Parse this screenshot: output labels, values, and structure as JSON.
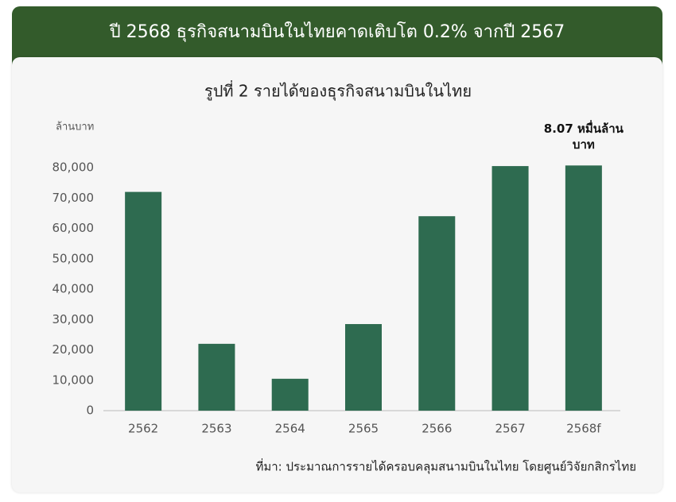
{
  "chart_data": {
    "type": "bar",
    "subtitle": "ปี 2568 ธุรกิจสนามบินในไทยคาดเติบโต 0.2% จากปี 2567",
    "title": "รูปที่ 2 รายได้ของธุรกิจสนามบินในไทย",
    "y_label": "ล้านบาท",
    "source": "ที่มา: ประมาณการรายได้ครอบคลุมสนามบินในไทย โดยศูนย์วิจัยกสิกรไทย",
    "categories": [
      "2562",
      "2563",
      "2564",
      "2565",
      "2566",
      "2567",
      "2568f"
    ],
    "values": [
      72000,
      22000,
      10500,
      28500,
      64000,
      80500,
      80700
    ],
    "value_labels": [
      null,
      null,
      null,
      null,
      null,
      null,
      "8.07 หมื่นล้านบาท"
    ],
    "color": "#2e6b50",
    "ylim": [
      0,
      80000
    ],
    "yticks": [
      0,
      {
        "value": 10000,
        "label": "10,000"
      },
      {
        "value": 20000,
        "label": "20,000"
      },
      {
        "value": 30000,
        "label": "30,000"
      },
      {
        "value": 40000,
        "label": "40,000"
      },
      {
        "value": 50000,
        "label": "50,000"
      },
      {
        "value": 60000,
        "label": "60,000"
      },
      {
        "value": 70000,
        "label": "70,000"
      },
      {
        "value": 80000,
        "label": "80,000"
      }
    ],
    "grid": false
  }
}
